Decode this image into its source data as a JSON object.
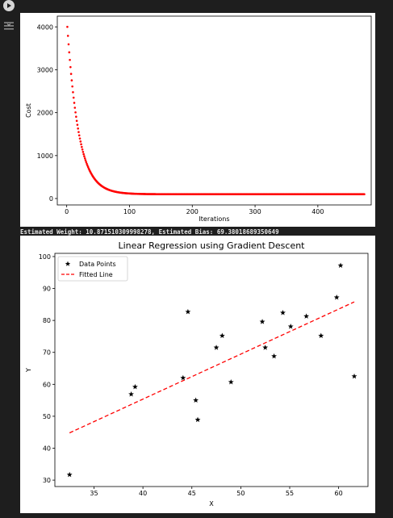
{
  "icons": {
    "run": "run-icon",
    "output": "output-toggle-icon"
  },
  "output_text": "Estimated Weight: 10.871510309998278, Estimated Bias: 69.38018689350649",
  "chart_data": [
    {
      "type": "scatter",
      "title": "",
      "xlabel": "Iterations",
      "ylabel": "Cost",
      "xlim": [
        -15,
        485
      ],
      "ylim": [
        -150,
        4250
      ],
      "xticks": [
        0,
        100,
        200,
        300,
        400
      ],
      "yticks": [
        0,
        1000,
        2000,
        3000,
        4000
      ],
      "series": [
        {
          "color": "#ff0000",
          "cost_curve": {
            "iterations": 474,
            "initial": 4000,
            "floor": 100,
            "decay_rate": 0.055
          }
        }
      ]
    },
    {
      "type": "scatter",
      "title": "Linear Regression using Gradient Descent",
      "xlabel": "X",
      "ylabel": "Y",
      "xlim": [
        31,
        63
      ],
      "ylim": [
        28,
        101
      ],
      "xticks": [
        35,
        40,
        45,
        50,
        55,
        60
      ],
      "yticks": [
        30,
        40,
        50,
        60,
        70,
        80,
        90,
        100
      ],
      "legend": {
        "placement": "top-left",
        "entries": [
          "Data Points",
          "Fitted Line"
        ]
      },
      "series": [
        {
          "name": "Data Points",
          "color": "#000000",
          "marker": "star",
          "x": [
            32.5,
            38.8,
            39.2,
            44.1,
            44.6,
            45.4,
            45.6,
            47.5,
            48.1,
            49.0,
            52.2,
            52.5,
            53.4,
            54.3,
            55.1,
            56.7,
            58.2,
            59.8,
            60.2,
            61.6
          ],
          "y": [
            31.7,
            56.9,
            59.2,
            62.0,
            82.7,
            55.0,
            48.9,
            71.5,
            75.2,
            60.7,
            79.6,
            71.5,
            68.8,
            82.4,
            78.1,
            81.3,
            75.2,
            87.2,
            97.2,
            62.5
          ]
        },
        {
          "name": "Fitted Line",
          "color": "#ff0000",
          "style": "dashed",
          "x": [
            32.5,
            61.6
          ],
          "y": [
            44.8,
            85.8
          ]
        }
      ]
    }
  ]
}
